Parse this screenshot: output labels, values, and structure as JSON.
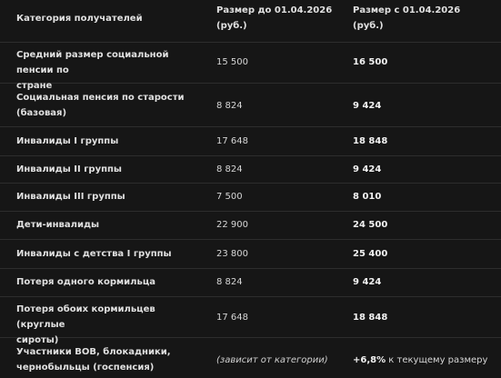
{
  "header": {
    "col1": "Категория получателей",
    "col2_line1": "Размер до 01.04.2026",
    "col2_line2": "(руб.)",
    "col3_line1": "Размер с 01.04.2026",
    "col3_line2": "(руб.)"
  },
  "rows": [
    {
      "cat1": "Средний размер социальной пенсии по",
      "cat2": "стране",
      "before": "15 500",
      "after": "16 500"
    },
    {
      "cat1": "Социальная пенсия по старости",
      "cat2": "(базовая)",
      "before": "8 824",
      "after": "9 424"
    },
    {
      "cat1": "Инвалиды I группы",
      "cat2": "",
      "before": "17 648",
      "after": "18 848"
    },
    {
      "cat1": "Инвалиды II группы",
      "cat2": "",
      "before": "8 824",
      "after": "9 424"
    },
    {
      "cat1": "Инвалиды III группы",
      "cat2": "",
      "before": "7 500",
      "after": "8 010"
    },
    {
      "cat1": "Дети-инвалиды",
      "cat2": "",
      "before": "22 900",
      "after": "24 500"
    },
    {
      "cat1": "Инвалиды с детства I группы",
      "cat2": "",
      "before": "23 800",
      "after": "25 400"
    },
    {
      "cat1": "Потеря одного кормильца",
      "cat2": "",
      "before": "8 824",
      "after": "9 424"
    },
    {
      "cat1": "Потеря обоих кормильцев (круглые",
      "cat2": "сироты)",
      "before": "17 648",
      "after": "18 848"
    },
    {
      "cat1": "Участники ВОВ, блокадники,",
      "cat2": "чернобыльцы (госпенсия)",
      "before": "(зависит от категории)",
      "after_bold": "+6,8%",
      "after_rest": " к текущему размеру"
    }
  ]
}
